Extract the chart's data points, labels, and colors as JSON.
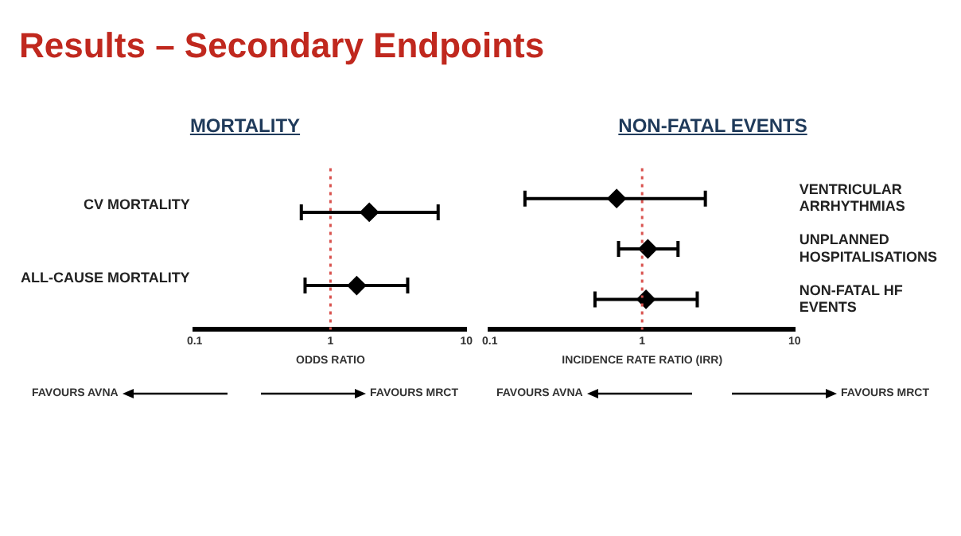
{
  "chart_data": [
    {
      "type": "scatter",
      "orientation": "horizontal",
      "title": "Results – Secondary Endpoints",
      "subtitle": "MORTALITY",
      "xlabel": "ODDS RATIO",
      "categories": [
        "CV MORTALITY",
        "ALL-CAUSE MORTALITY"
      ],
      "values": [
        1.93,
        1.56
      ],
      "errors": [
        [
          0.61,
          6.2
        ],
        [
          0.65,
          3.7
        ]
      ],
      "color": "#000000",
      "marker": "diamond",
      "log": "x",
      "xlim": [
        0.1,
        10
      ],
      "xticks": [
        0.1,
        1,
        10
      ],
      "ref_lines": [
        {
          "axis": "x",
          "value": 1,
          "color": "#d9534f",
          "line_style": "dotted"
        }
      ],
      "annotations": [
        "FAVOURS AVNA",
        "FAVOURS MRCT"
      ]
    },
    {
      "type": "scatter",
      "orientation": "horizontal",
      "subtitle": "NON-FATAL EVENTS",
      "xlabel": "INCIDENCE RATE RATIO (IRR)",
      "categories": [
        "VENTRICULAR ARRHYTHMIAS",
        "UNPLANNED HOSPITALISATIONS",
        "NON-FATAL HF EVENTS"
      ],
      "values": [
        0.68,
        1.09,
        1.06
      ],
      "errors": [
        [
          0.17,
          2.6
        ],
        [
          0.7,
          1.72
        ],
        [
          0.49,
          2.3
        ]
      ],
      "color": "#000000",
      "marker": "diamond",
      "log": "x",
      "xlim": [
        0.1,
        10
      ],
      "xticks": [
        0.1,
        1,
        10
      ],
      "ref_lines": [
        {
          "axis": "x",
          "value": 1,
          "color": "#d9534f",
          "line_style": "dotted"
        }
      ],
      "annotations": [
        "FAVOURS AVNA",
        "FAVOURS MRCT"
      ]
    }
  ]
}
